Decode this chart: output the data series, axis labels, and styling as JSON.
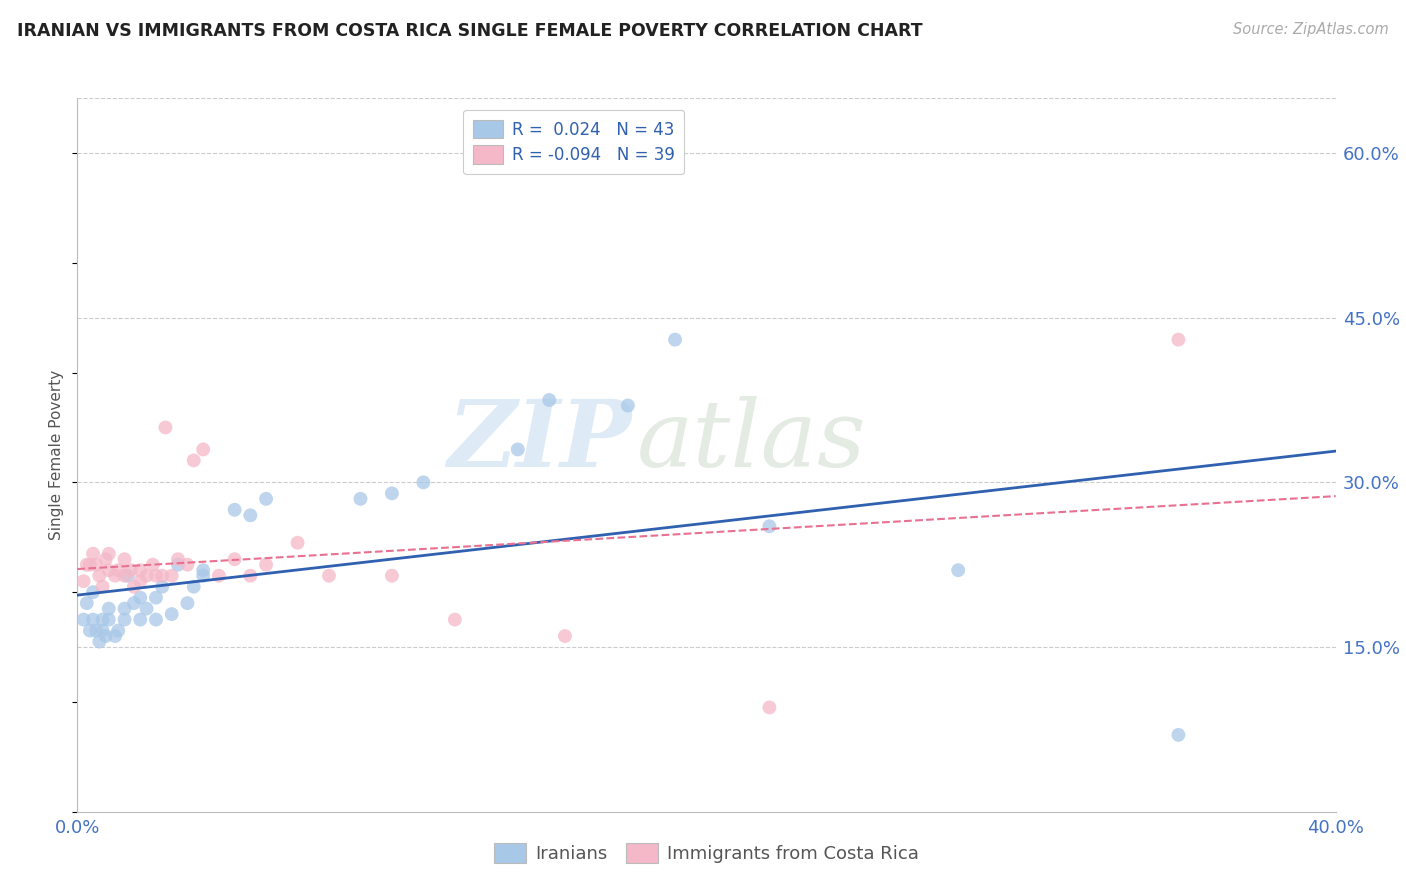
{
  "title": "IRANIAN VS IMMIGRANTS FROM COSTA RICA SINGLE FEMALE POVERTY CORRELATION CHART",
  "source": "Source: ZipAtlas.com",
  "ylabel": "Single Female Poverty",
  "x_min": 0.0,
  "x_max": 0.4,
  "y_min": 0.0,
  "y_max": 0.65,
  "y_ticks_right": [
    0.15,
    0.3,
    0.45,
    0.6
  ],
  "y_tick_labels_right": [
    "15.0%",
    "30.0%",
    "45.0%",
    "60.0%"
  ],
  "watermark_zip": "ZIP",
  "watermark_atlas": "atlas",
  "legend_r1": "R =  0.024",
  "legend_n1": "N = 43",
  "legend_r2": "R = -0.094",
  "legend_n2": "N = 39",
  "color_iranian": "#a8c8e8",
  "color_costa_rica": "#f4b8c8",
  "color_iranian_line": "#3060b0",
  "color_costa_rica_line": "#e87090",
  "scatter_alpha": 0.75,
  "scatter_size": 100,
  "iranians_x": [
    0.002,
    0.003,
    0.004,
    0.005,
    0.005,
    0.006,
    0.007,
    0.008,
    0.008,
    0.009,
    0.01,
    0.01,
    0.012,
    0.013,
    0.015,
    0.015,
    0.016,
    0.018,
    0.02,
    0.02,
    0.022,
    0.025,
    0.025,
    0.027,
    0.03,
    0.032,
    0.035,
    0.037,
    0.04,
    0.04,
    0.05,
    0.055,
    0.06,
    0.09,
    0.1,
    0.11,
    0.14,
    0.15,
    0.175,
    0.19,
    0.22,
    0.28,
    0.35
  ],
  "iranians_y": [
    0.175,
    0.19,
    0.165,
    0.175,
    0.2,
    0.165,
    0.155,
    0.165,
    0.175,
    0.16,
    0.175,
    0.185,
    0.16,
    0.165,
    0.175,
    0.185,
    0.215,
    0.19,
    0.175,
    0.195,
    0.185,
    0.175,
    0.195,
    0.205,
    0.18,
    0.225,
    0.19,
    0.205,
    0.215,
    0.22,
    0.275,
    0.27,
    0.285,
    0.285,
    0.29,
    0.3,
    0.33,
    0.375,
    0.37,
    0.43,
    0.26,
    0.22,
    0.07
  ],
  "costa_rica_x": [
    0.002,
    0.003,
    0.004,
    0.005,
    0.006,
    0.007,
    0.008,
    0.009,
    0.01,
    0.01,
    0.012,
    0.013,
    0.015,
    0.015,
    0.017,
    0.018,
    0.02,
    0.02,
    0.022,
    0.024,
    0.025,
    0.027,
    0.028,
    0.03,
    0.032,
    0.035,
    0.037,
    0.04,
    0.045,
    0.05,
    0.055,
    0.06,
    0.07,
    0.08,
    0.1,
    0.12,
    0.155,
    0.22,
    0.35
  ],
  "costa_rica_y": [
    0.21,
    0.225,
    0.225,
    0.235,
    0.225,
    0.215,
    0.205,
    0.23,
    0.22,
    0.235,
    0.215,
    0.22,
    0.215,
    0.23,
    0.22,
    0.205,
    0.21,
    0.22,
    0.215,
    0.225,
    0.215,
    0.215,
    0.35,
    0.215,
    0.23,
    0.225,
    0.32,
    0.33,
    0.215,
    0.23,
    0.215,
    0.225,
    0.245,
    0.215,
    0.215,
    0.175,
    0.16,
    0.095,
    0.43
  ],
  "background_color": "#ffffff",
  "grid_color": "#cccccc",
  "title_color": "#222222",
  "axis_label_color": "#4472c4",
  "right_axis_color": "#4472c4"
}
